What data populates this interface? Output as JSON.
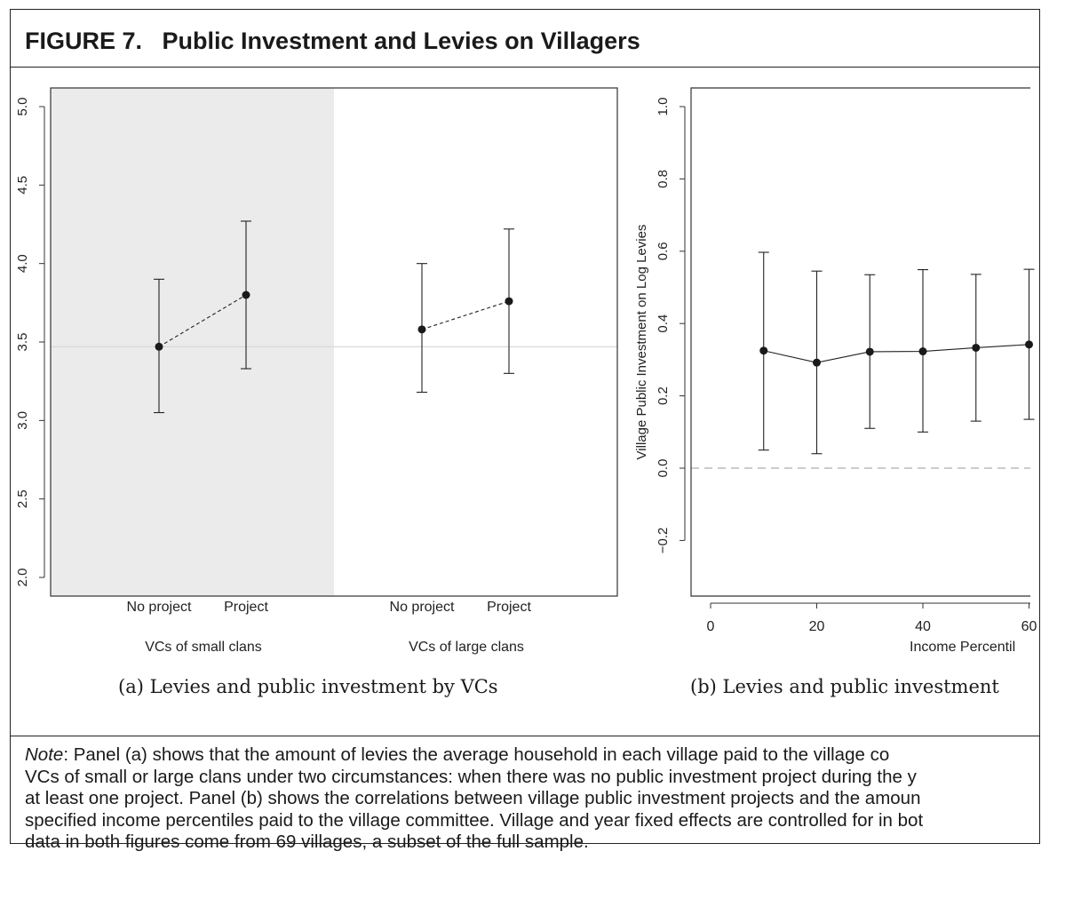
{
  "figure": {
    "title": "FIGURE 7.   Public Investment and Levies on Villagers"
  },
  "panel_a": {
    "caption": "(a) Levies and public investment by VCs",
    "group_labels": [
      "VCs of small clans",
      "VCs of large clans"
    ]
  },
  "panel_b": {
    "caption": "(b) Levies and public investment",
    "ylabel": "Village Public Investment on Log Levies",
    "xlabel": "Income Percentil"
  },
  "note": {
    "lead": "Note",
    "lines": [
      ": Panel (a) shows that the amount of levies the average household in each village paid to the village co",
      "VCs of small or large clans under two circumstances: when there was no public investment project during the y",
      "at least one project. Panel (b) shows the correlations between village public investment projects and the amoun",
      "specified income percentiles paid to the village committee. Village and year fixed effects are controlled for in bot",
      "data in both figures come from 69 villages, a subset of the full sample."
    ]
  },
  "chart_data": [
    {
      "type": "scatter",
      "title": "",
      "categories": [
        "No project",
        "Project",
        "No project",
        "Project"
      ],
      "groups": [
        "VCs of small clans",
        "VCs of large clans"
      ],
      "values": [
        3.47,
        3.8,
        3.58,
        3.76
      ],
      "ci_lower": [
        3.05,
        3.33,
        3.18,
        3.3
      ],
      "ci_upper": [
        3.9,
        4.27,
        4.0,
        4.22
      ],
      "reference_line": 3.47,
      "ylim": [
        2.0,
        5.0
      ],
      "yticks": [
        2.0,
        2.5,
        3.0,
        3.5,
        4.0,
        4.5,
        5.0
      ],
      "shaded_group": "VCs of small clans",
      "shade_color": "#ebebeb",
      "connector": "dashed"
    },
    {
      "type": "line",
      "title": "",
      "xlabel": "Income Percentil",
      "ylabel": "Village Public Investment on Log Levies",
      "x": [
        10,
        20,
        30,
        40,
        50,
        60
      ],
      "values": [
        0.325,
        0.292,
        0.322,
        0.323,
        0.333,
        0.342
      ],
      "ci_lower": [
        0.05,
        0.04,
        0.11,
        0.1,
        0.13,
        0.135
      ],
      "ci_upper": [
        0.597,
        0.545,
        0.535,
        0.549,
        0.536,
        0.55
      ],
      "xticks": [
        0,
        20,
        40,
        60
      ],
      "xtick_labels": [
        "0",
        "20",
        "40",
        "60"
      ],
      "yticks": [
        -0.2,
        0.0,
        0.2,
        0.4,
        0.6,
        0.8,
        1.0
      ],
      "ytick_labels": [
        "−0.2",
        "0.0",
        "0.2",
        "0.4",
        "0.6",
        "0.8",
        "1.0"
      ],
      "ylim": [
        -0.35,
        1.05
      ],
      "reference_line": 0.0,
      "reference_color": "#cccccc"
    }
  ]
}
